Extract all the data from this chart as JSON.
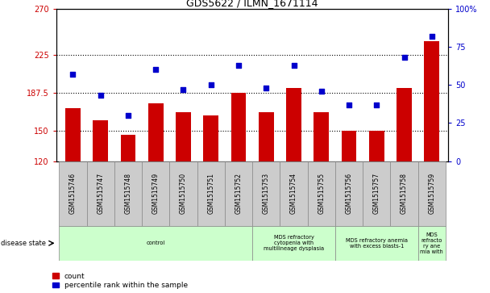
{
  "title": "GDS5622 / ILMN_1671114",
  "samples": [
    "GSM1515746",
    "GSM1515747",
    "GSM1515748",
    "GSM1515749",
    "GSM1515750",
    "GSM1515751",
    "GSM1515752",
    "GSM1515753",
    "GSM1515754",
    "GSM1515755",
    "GSM1515756",
    "GSM1515757",
    "GSM1515758",
    "GSM1515759"
  ],
  "counts": [
    172,
    160,
    146,
    177,
    168,
    165,
    187,
    168,
    192,
    168,
    150,
    150,
    192,
    238
  ],
  "percentile_ranks": [
    57,
    43,
    30,
    60,
    47,
    50,
    63,
    48,
    63,
    46,
    37,
    37,
    68,
    82
  ],
  "ylim_left": [
    120,
    270
  ],
  "ylim_right": [
    0,
    100
  ],
  "yticks_left": [
    120,
    150,
    187.5,
    225,
    270
  ],
  "ytick_labels_left": [
    "120",
    "150",
    "187.5",
    "225",
    "270"
  ],
  "yticks_right": [
    0,
    25,
    50,
    75,
    100
  ],
  "ytick_labels_right": [
    "0",
    "25",
    "50",
    "75",
    "100%"
  ],
  "bar_color": "#cc0000",
  "dot_color": "#0000cc",
  "disease_states": [
    {
      "label": "control",
      "start": 0,
      "end": 7
    },
    {
      "label": "MDS refractory\ncytopenia with\nmultilineage dysplasia",
      "start": 7,
      "end": 10
    },
    {
      "label": "MDS refractory anemia\nwith excess blasts-1",
      "start": 10,
      "end": 13
    },
    {
      "label": "MDS\nrefracto\nry ane\nmia with",
      "start": 13,
      "end": 14
    }
  ],
  "disease_label": "disease state",
  "legend_count_label": "count",
  "legend_percentile_label": "percentile rank within the sample",
  "dotted_lines": [
    150,
    187.5,
    225
  ],
  "bg_color": "#ffffff",
  "tick_bg": "#cccccc",
  "disease_bg": "#ccffcc"
}
